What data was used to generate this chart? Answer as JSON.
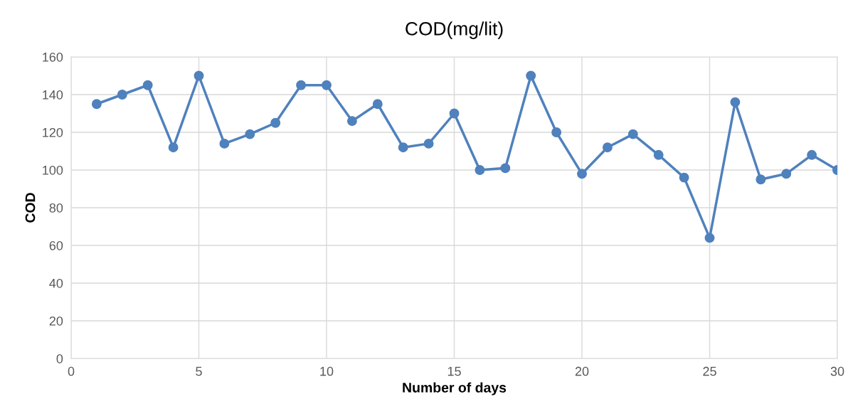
{
  "chart_data": {
    "type": "line",
    "title": "COD(mg/lit)",
    "xlabel": "Number of days",
    "ylabel": "COD",
    "x": [
      1,
      2,
      3,
      4,
      5,
      6,
      7,
      8,
      9,
      10,
      11,
      12,
      13,
      14,
      15,
      16,
      17,
      18,
      19,
      20,
      21,
      22,
      23,
      24,
      25,
      26,
      27,
      28,
      29,
      30
    ],
    "series": [
      {
        "color": "#4f81bd",
        "values": [
          135,
          140,
          145,
          112,
          150,
          114,
          119,
          125,
          145,
          145,
          126,
          135,
          112,
          114,
          130,
          100,
          101,
          150,
          120,
          98,
          112,
          119,
          108,
          96,
          64,
          136,
          95,
          98,
          108,
          100
        ]
      }
    ],
    "xlim": [
      0,
      30
    ],
    "xticks": [
      0,
      5,
      10,
      15,
      20,
      25,
      30
    ],
    "ylim": [
      0,
      160
    ],
    "yticks": [
      0,
      20,
      40,
      60,
      80,
      100,
      120,
      140,
      160
    ],
    "grid": true,
    "marker": "circle",
    "line_style": "solid",
    "legend": false
  }
}
